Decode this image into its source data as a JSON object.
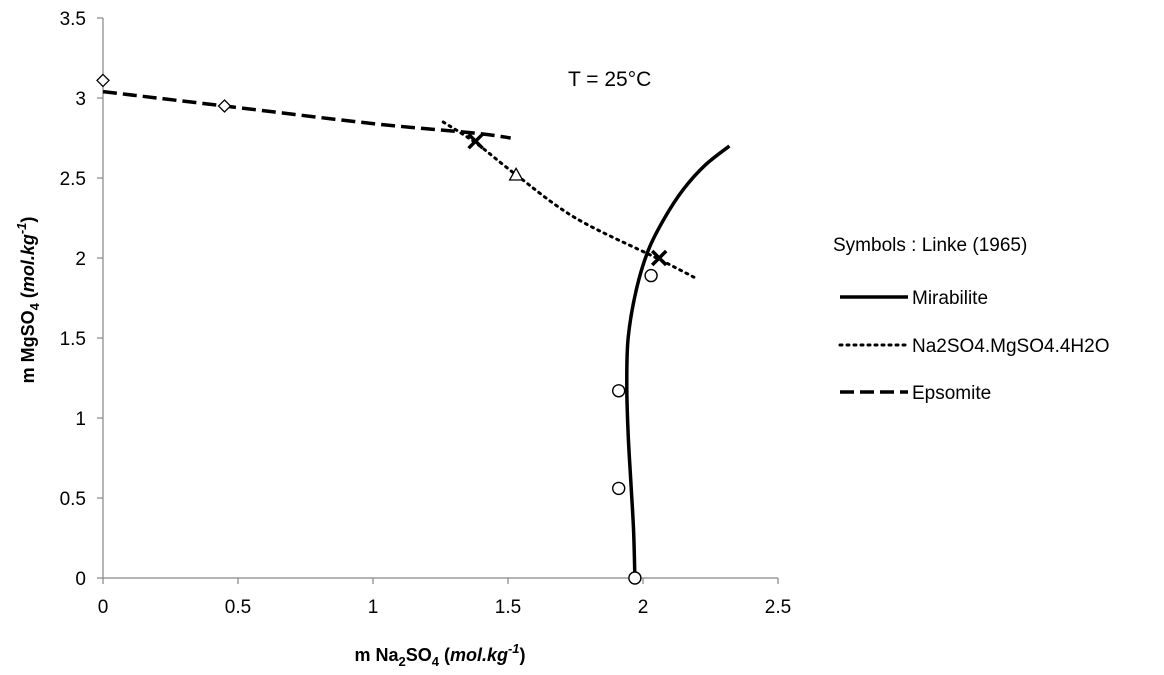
{
  "chart_data": {
    "type": "scatter",
    "annotation": "T = 25°C",
    "xlabel": {
      "pre": "m Na",
      "sub1": "2",
      "mid": "SO",
      "sub2": "4",
      "open": " (",
      "unit": "mol.kg",
      "sup": "-1",
      "close": ")"
    },
    "ylabel": {
      "pre": "m MgSO",
      "sub": "4",
      "open": " (",
      "unit": "mol.kg",
      "sup": "-1",
      "close": ")"
    },
    "xlim": [
      0,
      2.5
    ],
    "ylim": [
      0,
      3.5
    ],
    "xticks": [
      "0",
      "0.5",
      "1",
      "1.5",
      "2",
      "2.5"
    ],
    "yticks": [
      "0",
      "0.5",
      "1",
      "1.5",
      "2",
      "2.5",
      "3",
      "3.5"
    ],
    "grid": false,
    "legend_position": "right",
    "legend_title": "Symbols : Linke (1965)",
    "series": [
      {
        "name": "Mirabilite",
        "style": "solid",
        "points": [
          [
            1.97,
            0
          ],
          [
            1.965,
            0.3
          ],
          [
            1.955,
            0.6
          ],
          [
            1.945,
            0.9
          ],
          [
            1.94,
            1.2
          ],
          [
            1.945,
            1.5
          ],
          [
            1.975,
            1.8
          ],
          [
            2.02,
            2.05
          ],
          [
            2.08,
            2.25
          ],
          [
            2.15,
            2.43
          ],
          [
            2.23,
            2.58
          ],
          [
            2.32,
            2.7
          ]
        ]
      },
      {
        "name": "Na2SO4.MgSO4.4H2O",
        "style": "dotted",
        "points": [
          [
            1.26,
            2.85
          ],
          [
            1.38,
            2.72
          ],
          [
            1.53,
            2.52
          ],
          [
            1.75,
            2.25
          ],
          [
            2.05,
            2.0
          ],
          [
            2.2,
            1.87
          ]
        ]
      },
      {
        "name": "Epsomite",
        "style": "dashed",
        "points": [
          [
            0,
            3.04
          ],
          [
            0.45,
            2.95
          ],
          [
            1.0,
            2.84
          ],
          [
            1.38,
            2.78
          ],
          [
            1.51,
            2.75
          ]
        ]
      }
    ],
    "markers": [
      {
        "symbol": "diamond",
        "points": [
          [
            0,
            3.11
          ],
          [
            0.45,
            2.95
          ]
        ]
      },
      {
        "symbol": "triangle",
        "points": [
          [
            1.53,
            2.52
          ]
        ]
      },
      {
        "symbol": "x",
        "points": [
          [
            1.38,
            2.73
          ],
          [
            2.06,
            2.0
          ]
        ]
      },
      {
        "symbol": "circle",
        "points": [
          [
            1.97,
            0
          ],
          [
            1.91,
            0.56
          ],
          [
            1.91,
            1.17
          ],
          [
            2.03,
            1.89
          ]
        ]
      }
    ]
  }
}
